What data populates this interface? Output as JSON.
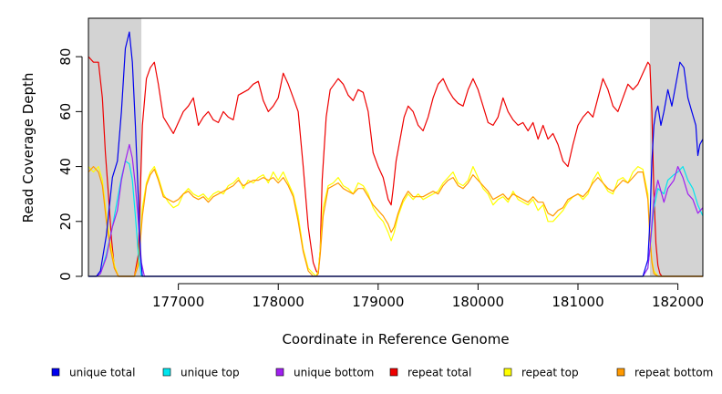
{
  "chart_data": {
    "type": "line",
    "title": "",
    "xlabel": "Coordinate in Reference Genome",
    "ylabel": "Read Coverage Depth",
    "xlim": [
      176100,
      182250
    ],
    "ylim": [
      0,
      94
    ],
    "xticks": [
      177000,
      178000,
      179000,
      180000,
      181000,
      182000
    ],
    "xtick_labels": [
      "177000",
      "178000",
      "179000",
      "180000",
      "181000",
      "182000"
    ],
    "yticks": [
      0,
      20,
      40,
      60,
      80
    ],
    "ytick_labels": [
      "0",
      "20",
      "40",
      "60",
      "80"
    ],
    "shaded_regions": [
      [
        176100,
        176630
      ],
      [
        181720,
        182250
      ]
    ],
    "shade_color": "#d3d3d3",
    "series": [
      {
        "name": "unique total",
        "color": "#0000ee",
        "x": [
          176100,
          176180,
          176220,
          176280,
          176340,
          176390,
          176430,
          176470,
          176510,
          176540,
          176570,
          176600,
          176620,
          176640,
          176660,
          176700,
          177000,
          178000,
          179000,
          180000,
          181000,
          181650,
          181700,
          181720,
          181740,
          181760,
          181780,
          181800,
          181830,
          181860,
          181900,
          181940,
          181980,
          182020,
          182060,
          182100,
          182140,
          182180,
          182200,
          182220,
          182250
        ],
        "values": [
          0,
          0,
          2,
          15,
          36,
          42,
          60,
          83,
          89,
          78,
          55,
          28,
          8,
          0,
          0,
          0,
          0,
          0,
          0,
          0,
          0,
          0,
          6,
          20,
          42,
          55,
          60,
          62,
          55,
          60,
          68,
          62,
          70,
          78,
          76,
          65,
          60,
          55,
          44,
          48,
          50
        ]
      },
      {
        "name": "unique top",
        "color": "#00e5ee",
        "x": [
          176100,
          176180,
          176220,
          176280,
          176340,
          176390,
          176430,
          176470,
          176510,
          176540,
          176570,
          176600,
          176630,
          176660,
          177000,
          178000,
          179000,
          180000,
          181000,
          181650,
          181700,
          181720,
          181760,
          181800,
          181860,
          181900,
          181960,
          182000,
          182050,
          182100,
          182150,
          182200,
          182250
        ],
        "values": [
          0,
          0,
          1,
          8,
          18,
          28,
          36,
          42,
          41,
          35,
          22,
          8,
          0,
          0,
          0,
          0,
          0,
          0,
          0,
          0,
          3,
          10,
          25,
          32,
          30,
          35,
          37,
          38,
          40,
          35,
          32,
          26,
          22
        ]
      },
      {
        "name": "unique bottom",
        "color": "#a020f0",
        "x": [
          176100,
          176180,
          176220,
          176280,
          176340,
          176390,
          176430,
          176470,
          176510,
          176540,
          176570,
          176600,
          176630,
          176660,
          177000,
          178000,
          179000,
          180000,
          181000,
          181650,
          181700,
          181720,
          181760,
          181800,
          181860,
          181900,
          181960,
          182000,
          182050,
          182100,
          182150,
          182200,
          182250
        ],
        "values": [
          0,
          0,
          1,
          7,
          18,
          24,
          35,
          42,
          48,
          43,
          33,
          20,
          5,
          0,
          0,
          0,
          0,
          0,
          0,
          0,
          3,
          10,
          28,
          35,
          27,
          32,
          35,
          40,
          36,
          30,
          28,
          23,
          25
        ]
      },
      {
        "name": "repeat total",
        "color": "#ee0000",
        "x": [
          176100,
          176150,
          176200,
          176240,
          176270,
          176300,
          176330,
          176360,
          176400,
          176440,
          176480,
          176520,
          176560,
          176600,
          176640,
          176680,
          176720,
          176760,
          176800,
          176850,
          176900,
          176950,
          177000,
          177050,
          177100,
          177150,
          177200,
          177250,
          177300,
          177350,
          177400,
          177450,
          177500,
          177550,
          177600,
          177650,
          177700,
          177750,
          177800,
          177850,
          177900,
          177950,
          178000,
          178050,
          178100,
          178150,
          178200,
          178250,
          178300,
          178350,
          178380,
          178400,
          178420,
          178440,
          178480,
          178520,
          178560,
          178600,
          178650,
          178700,
          178750,
          178800,
          178850,
          178900,
          178950,
          179000,
          179050,
          179100,
          179130,
          179150,
          179180,
          179220,
          179260,
          179300,
          179350,
          179400,
          179450,
          179500,
          179550,
          179600,
          179650,
          179700,
          179750,
          179800,
          179850,
          179900,
          179950,
          180000,
          180050,
          180100,
          180150,
          180200,
          180250,
          180300,
          180350,
          180400,
          180450,
          180500,
          180550,
          180600,
          180650,
          180700,
          180750,
          180800,
          180850,
          180900,
          180950,
          181000,
          181050,
          181100,
          181150,
          181200,
          181250,
          181300,
          181350,
          181400,
          181450,
          181500,
          181550,
          181600,
          181650,
          181700,
          181720,
          181740,
          181760,
          181780,
          181800,
          181820,
          181840,
          181860,
          181880,
          181900,
          181950,
          182000,
          182050,
          182100,
          182150,
          182200,
          182250
        ],
        "values": [
          80,
          78,
          78,
          65,
          45,
          30,
          14,
          3,
          0,
          0,
          0,
          0,
          0,
          8,
          55,
          72,
          76,
          78,
          70,
          58,
          55,
          52,
          56,
          60,
          62,
          65,
          55,
          58,
          60,
          57,
          56,
          60,
          58,
          57,
          66,
          67,
          68,
          70,
          71,
          64,
          60,
          62,
          65,
          74,
          70,
          65,
          60,
          40,
          18,
          5,
          2,
          1,
          10,
          35,
          58,
          68,
          70,
          72,
          70,
          66,
          64,
          68,
          67,
          60,
          45,
          40,
          36,
          28,
          26,
          32,
          42,
          50,
          58,
          62,
          60,
          55,
          53,
          58,
          65,
          70,
          72,
          68,
          65,
          63,
          62,
          68,
          72,
          68,
          62,
          56,
          55,
          58,
          65,
          60,
          57,
          55,
          56,
          53,
          56,
          50,
          55,
          50,
          52,
          48,
          42,
          40,
          48,
          55,
          58,
          60,
          58,
          65,
          72,
          68,
          62,
          60,
          65,
          70,
          68,
          70,
          74,
          78,
          77,
          60,
          30,
          12,
          4,
          1,
          0,
          0,
          0,
          0,
          0,
          0,
          0,
          0,
          0,
          0,
          0
        ]
      },
      {
        "name": "repeat top",
        "color": "#ffff00",
        "x": [
          176100,
          176150,
          176200,
          176240,
          176280,
          176320,
          176360,
          176400,
          176440,
          176480,
          176520,
          176560,
          176600,
          176640,
          176680,
          176720,
          176760,
          176800,
          176850,
          176900,
          176950,
          177000,
          177050,
          177100,
          177150,
          177200,
          177250,
          177300,
          177350,
          177400,
          177450,
          177500,
          177550,
          177600,
          177650,
          177700,
          177750,
          177800,
          177850,
          177900,
          177950,
          178000,
          178050,
          178100,
          178150,
          178200,
          178250,
          178300,
          178350,
          178380,
          178400,
          178420,
          178450,
          178500,
          178550,
          178600,
          178650,
          178700,
          178750,
          178800,
          178850,
          178900,
          178950,
          179000,
          179050,
          179100,
          179130,
          179160,
          179200,
          179250,
          179300,
          179350,
          179400,
          179450,
          179500,
          179550,
          179600,
          179650,
          179700,
          179750,
          179800,
          179850,
          179900,
          179950,
          180000,
          180050,
          180100,
          180150,
          180200,
          180250,
          180300,
          180350,
          180400,
          180450,
          180500,
          180550,
          180600,
          180650,
          180700,
          180750,
          180800,
          180850,
          180900,
          180950,
          181000,
          181050,
          181100,
          181150,
          181200,
          181250,
          181300,
          181350,
          181400,
          181450,
          181500,
          181550,
          181600,
          181650,
          181700,
          181720,
          181740,
          181760,
          181800,
          182250
        ],
        "values": [
          40,
          38,
          40,
          35,
          22,
          12,
          4,
          0,
          0,
          0,
          0,
          0,
          5,
          25,
          34,
          38,
          40,
          36,
          30,
          27,
          25,
          26,
          30,
          32,
          30,
          29,
          30,
          28,
          30,
          31,
          30,
          33,
          34,
          36,
          32,
          35,
          34,
          36,
          37,
          34,
          38,
          35,
          38,
          34,
          30,
          22,
          10,
          3,
          1,
          0,
          2,
          10,
          25,
          33,
          34,
          36,
          33,
          32,
          30,
          34,
          33,
          30,
          25,
          22,
          20,
          16,
          13,
          16,
          22,
          27,
          30,
          28,
          30,
          28,
          29,
          30,
          31,
          34,
          36,
          38,
          34,
          33,
          35,
          40,
          36,
          32,
          30,
          26,
          28,
          29,
          27,
          31,
          28,
          27,
          26,
          28,
          24,
          26,
          20,
          20,
          22,
          24,
          27,
          29,
          30,
          28,
          30,
          35,
          38,
          34,
          31,
          30,
          35,
          36,
          34,
          38,
          40,
          39,
          30,
          15,
          6,
          2,
          0,
          0
        ]
      },
      {
        "name": "repeat bottom",
        "color": "#ff9900",
        "x": [
          176100,
          176150,
          176200,
          176240,
          176280,
          176320,
          176360,
          176400,
          176440,
          176480,
          176520,
          176560,
          176600,
          176640,
          176680,
          176720,
          176760,
          176800,
          176850,
          176900,
          176950,
          177000,
          177050,
          177100,
          177150,
          177200,
          177250,
          177300,
          177350,
          177400,
          177450,
          177500,
          177550,
          177600,
          177650,
          177700,
          177750,
          177800,
          177850,
          177900,
          177950,
          178000,
          178050,
          178100,
          178150,
          178200,
          178250,
          178300,
          178350,
          178380,
          178400,
          178420,
          178450,
          178500,
          178550,
          178600,
          178650,
          178700,
          178750,
          178800,
          178850,
          178900,
          178950,
          179000,
          179050,
          179100,
          179130,
          179160,
          179200,
          179250,
          179300,
          179350,
          179400,
          179450,
          179500,
          179550,
          179600,
          179650,
          179700,
          179750,
          179800,
          179850,
          179900,
          179950,
          180000,
          180050,
          180100,
          180150,
          180200,
          180250,
          180300,
          180350,
          180400,
          180450,
          180500,
          180550,
          180600,
          180650,
          180700,
          180750,
          180800,
          180850,
          180900,
          180950,
          181000,
          181050,
          181100,
          181150,
          181200,
          181250,
          181300,
          181350,
          181400,
          181450,
          181500,
          181550,
          181600,
          181650,
          181700,
          181720,
          181740,
          181760,
          181800,
          182250
        ],
        "values": [
          38,
          40,
          38,
          33,
          20,
          10,
          3,
          0,
          0,
          0,
          0,
          0,
          4,
          22,
          33,
          37,
          39,
          35,
          29,
          28,
          27,
          28,
          30,
          31,
          29,
          28,
          29,
          27,
          29,
          30,
          31,
          32,
          33,
          35,
          33,
          34,
          35,
          35,
          36,
          35,
          36,
          34,
          36,
          33,
          29,
          20,
          9,
          2,
          0,
          0,
          1,
          8,
          22,
          32,
          33,
          34,
          32,
          31,
          30,
          32,
          32,
          29,
          26,
          24,
          22,
          19,
          16,
          18,
          23,
          28,
          31,
          29,
          29,
          29,
          30,
          31,
          30,
          33,
          35,
          36,
          33,
          32,
          34,
          37,
          35,
          33,
          31,
          28,
          29,
          30,
          28,
          30,
          29,
          28,
          27,
          29,
          27,
          27,
          23,
          22,
          24,
          25,
          28,
          29,
          30,
          29,
          31,
          34,
          36,
          34,
          32,
          31,
          33,
          35,
          34,
          36,
          38,
          38,
          28,
          14,
          5,
          1,
          0,
          0
        ]
      }
    ]
  }
}
